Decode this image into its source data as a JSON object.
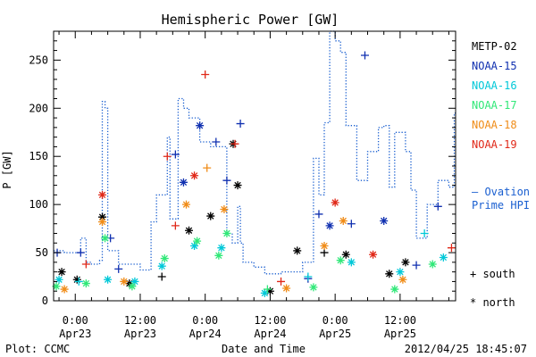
{
  "chart_data": {
    "type": "scatter",
    "title": "Hemispheric Power [GW]",
    "xlabel": "Date and Time",
    "ylabel": "P [GW]",
    "xlim": [
      "2012-04-22T20:00",
      "2012-04-25T22:15"
    ],
    "ylim": [
      0,
      280
    ],
    "yticks": [
      0,
      50,
      100,
      150,
      200,
      250
    ],
    "xticks": [
      {
        "at": "2012-04-23T00:00",
        "time": "0:00",
        "date": "Apr23"
      },
      {
        "at": "2012-04-23T12:00",
        "time": "12:00",
        "date": "Apr23"
      },
      {
        "at": "2012-04-24T00:00",
        "time": "0:00",
        "date": "Apr24"
      },
      {
        "at": "2012-04-24T12:00",
        "time": "12:00",
        "date": "Apr24"
      },
      {
        "at": "2012-04-25T00:00",
        "time": "0:00",
        "date": "Apr25"
      },
      {
        "at": "2012-04-25T12:00",
        "time": "12:00",
        "date": "Apr25"
      }
    ],
    "grid": false,
    "legend_position": "right",
    "marker_legend": {
      "south": "+ south",
      "north": "* north"
    },
    "series": [
      {
        "name": "METP-02",
        "color": "#000000",
        "points": [
          {
            "t": "2012-04-22T21:30",
            "p": 30,
            "m": "*"
          },
          {
            "t": "2012-04-23T00:20",
            "p": 22,
            "m": "*"
          },
          {
            "t": "2012-04-23T05:00",
            "p": 87,
            "m": "*"
          },
          {
            "t": "2012-04-23T10:00",
            "p": 18,
            "m": "*"
          },
          {
            "t": "2012-04-23T16:00",
            "p": 25,
            "m": "+"
          },
          {
            "t": "2012-04-23T21:00",
            "p": 73,
            "m": "*"
          },
          {
            "t": "2012-04-24T01:00",
            "p": 88,
            "m": "*"
          },
          {
            "t": "2012-04-24T05:10",
            "p": 163,
            "m": "*"
          },
          {
            "t": "2012-04-24T06:00",
            "p": 120,
            "m": "*"
          },
          {
            "t": "2012-04-24T12:00",
            "p": 10,
            "m": "*"
          },
          {
            "t": "2012-04-24T17:00",
            "p": 52,
            "m": "*"
          },
          {
            "t": "2012-04-24T22:00",
            "p": 50,
            "m": "+"
          },
          {
            "t": "2012-04-25T02:00",
            "p": 48,
            "m": "*"
          },
          {
            "t": "2012-04-25T10:00",
            "p": 28,
            "m": "*"
          },
          {
            "t": "2012-04-25T13:00",
            "p": 40,
            "m": "*"
          }
        ]
      },
      {
        "name": "NOAA-15",
        "color": "#1030b0",
        "points": [
          {
            "t": "2012-04-22T20:40",
            "p": 50,
            "m": "+"
          },
          {
            "t": "2012-04-23T01:00",
            "p": 50,
            "m": "+"
          },
          {
            "t": "2012-04-23T06:30",
            "p": 65,
            "m": "+"
          },
          {
            "t": "2012-04-23T08:00",
            "p": 33,
            "m": "+"
          },
          {
            "t": "2012-04-23T18:30",
            "p": 152,
            "m": "+"
          },
          {
            "t": "2012-04-23T20:00",
            "p": 123,
            "m": "*"
          },
          {
            "t": "2012-04-23T23:00",
            "p": 182,
            "m": "*"
          },
          {
            "t": "2012-04-24T02:00",
            "p": 165,
            "m": "+"
          },
          {
            "t": "2012-04-24T04:00",
            "p": 125,
            "m": "+"
          },
          {
            "t": "2012-04-24T06:30",
            "p": 184,
            "m": "+"
          },
          {
            "t": "2012-04-24T19:00",
            "p": 23,
            "m": "+"
          },
          {
            "t": "2012-04-24T21:00",
            "p": 90,
            "m": "+"
          },
          {
            "t": "2012-04-24T23:00",
            "p": 78,
            "m": "*"
          },
          {
            "t": "2012-04-25T03:00",
            "p": 80,
            "m": "+"
          },
          {
            "t": "2012-04-25T05:30",
            "p": 255,
            "m": "+"
          },
          {
            "t": "2012-04-25T09:00",
            "p": 83,
            "m": "*"
          },
          {
            "t": "2012-04-25T15:00",
            "p": 37,
            "m": "+"
          },
          {
            "t": "2012-04-25T19:00",
            "p": 98,
            "m": "+"
          }
        ]
      },
      {
        "name": "NOAA-16",
        "color": "#00c8d8",
        "points": [
          {
            "t": "2012-04-22T21:00",
            "p": 22,
            "m": "*"
          },
          {
            "t": "2012-04-23T00:40",
            "p": 20,
            "m": "+"
          },
          {
            "t": "2012-04-23T06:00",
            "p": 22,
            "m": "*"
          },
          {
            "t": "2012-04-23T11:00",
            "p": 20,
            "m": "*"
          },
          {
            "t": "2012-04-23T16:00",
            "p": 36,
            "m": "*"
          },
          {
            "t": "2012-04-23T22:00",
            "p": 57,
            "m": "*"
          },
          {
            "t": "2012-04-24T03:00",
            "p": 55,
            "m": "*"
          },
          {
            "t": "2012-04-24T11:00",
            "p": 8,
            "m": "*"
          },
          {
            "t": "2012-04-24T19:00",
            "p": 25,
            "m": "+"
          },
          {
            "t": "2012-04-25T03:00",
            "p": 40,
            "m": "*"
          },
          {
            "t": "2012-04-25T12:00",
            "p": 30,
            "m": "*"
          },
          {
            "t": "2012-04-25T16:30",
            "p": 70,
            "m": "+"
          },
          {
            "t": "2012-04-25T20:00",
            "p": 45,
            "m": "*"
          }
        ]
      },
      {
        "name": "NOAA-17",
        "color": "#30e878",
        "points": [
          {
            "t": "2012-04-22T20:30",
            "p": 15,
            "m": "*"
          },
          {
            "t": "2012-04-23T02:00",
            "p": 18,
            "m": "*"
          },
          {
            "t": "2012-04-23T05:30",
            "p": 65,
            "m": "*"
          },
          {
            "t": "2012-04-23T10:30",
            "p": 15,
            "m": "*"
          },
          {
            "t": "2012-04-23T16:30",
            "p": 44,
            "m": "*"
          },
          {
            "t": "2012-04-23T22:30",
            "p": 62,
            "m": "*"
          },
          {
            "t": "2012-04-24T02:30",
            "p": 47,
            "m": "*"
          },
          {
            "t": "2012-04-24T04:00",
            "p": 70,
            "m": "*"
          },
          {
            "t": "2012-04-24T11:30",
            "p": 12,
            "m": "+"
          },
          {
            "t": "2012-04-24T20:00",
            "p": 14,
            "m": "*"
          },
          {
            "t": "2012-04-25T01:00",
            "p": 42,
            "m": "*"
          },
          {
            "t": "2012-04-25T11:00",
            "p": 12,
            "m": "*"
          },
          {
            "t": "2012-04-25T18:00",
            "p": 38,
            "m": "*"
          }
        ]
      },
      {
        "name": "NOAA-18",
        "color": "#f08c18",
        "points": [
          {
            "t": "2012-04-22T22:00",
            "p": 12,
            "m": "*"
          },
          {
            "t": "2012-04-23T05:00",
            "p": 82,
            "m": "*"
          },
          {
            "t": "2012-04-23T09:00",
            "p": 20,
            "m": "*"
          },
          {
            "t": "2012-04-23T20:30",
            "p": 100,
            "m": "*"
          },
          {
            "t": "2012-04-24T00:20",
            "p": 138,
            "m": "+"
          },
          {
            "t": "2012-04-24T03:30",
            "p": 95,
            "m": "*"
          },
          {
            "t": "2012-04-24T15:00",
            "p": 13,
            "m": "*"
          },
          {
            "t": "2012-04-24T22:00",
            "p": 57,
            "m": "*"
          },
          {
            "t": "2012-04-25T01:30",
            "p": 83,
            "m": "*"
          },
          {
            "t": "2012-04-25T12:30",
            "p": 22,
            "m": "*"
          }
        ]
      },
      {
        "name": "NOAA-19",
        "color": "#e02818",
        "points": [
          {
            "t": "2012-04-23T02:00",
            "p": 38,
            "m": "+"
          },
          {
            "t": "2012-04-23T05:00",
            "p": 110,
            "m": "*"
          },
          {
            "t": "2012-04-23T17:00",
            "p": 150,
            "m": "+"
          },
          {
            "t": "2012-04-23T18:30",
            "p": 78,
            "m": "+"
          },
          {
            "t": "2012-04-23T22:00",
            "p": 130,
            "m": "*"
          },
          {
            "t": "2012-04-24T00:00",
            "p": 235,
            "m": "+"
          },
          {
            "t": "2012-04-24T05:30",
            "p": 163,
            "m": "+"
          },
          {
            "t": "2012-04-24T14:00",
            "p": 20,
            "m": "+"
          },
          {
            "t": "2012-04-25T00:00",
            "p": 102,
            "m": "*"
          },
          {
            "t": "2012-04-25T07:00",
            "p": 48,
            "m": "*"
          },
          {
            "t": "2012-04-25T21:30",
            "p": 55,
            "m": "+"
          }
        ]
      }
    ],
    "reference_line": {
      "name": "Ovation Prime HPI",
      "label_line1": "— Ovation",
      "label_line2": "Prime HPI",
      "color": "#1a5fd0",
      "points": [
        [
          "2012-04-22T20:00",
          52
        ],
        [
          "2012-04-22T22:00",
          50
        ],
        [
          "2012-04-23T01:00",
          65
        ],
        [
          "2012-04-23T02:00",
          40
        ],
        [
          "2012-04-23T03:00",
          38
        ],
        [
          "2012-04-23T04:30",
          42
        ],
        [
          "2012-04-23T05:00",
          207
        ],
        [
          "2012-04-23T05:30",
          200
        ],
        [
          "2012-04-23T06:00",
          52
        ],
        [
          "2012-04-23T08:00",
          38
        ],
        [
          "2012-04-23T12:00",
          32
        ],
        [
          "2012-04-23T14:00",
          82
        ],
        [
          "2012-04-23T15:00",
          110
        ],
        [
          "2012-04-23T17:00",
          170
        ],
        [
          "2012-04-23T17:30",
          85
        ],
        [
          "2012-04-23T19:00",
          210
        ],
        [
          "2012-04-23T20:00",
          200
        ],
        [
          "2012-04-23T21:00",
          190
        ],
        [
          "2012-04-23T23:00",
          165
        ],
        [
          "2012-04-24T01:00",
          160
        ],
        [
          "2012-04-24T04:00",
          70
        ],
        [
          "2012-04-24T05:00",
          60
        ],
        [
          "2012-04-24T06:00",
          98
        ],
        [
          "2012-04-24T06:30",
          60
        ],
        [
          "2012-04-24T07:00",
          40
        ],
        [
          "2012-04-24T09:00",
          35
        ],
        [
          "2012-04-24T11:00",
          28
        ],
        [
          "2012-04-24T14:00",
          30
        ],
        [
          "2012-04-24T18:00",
          40
        ],
        [
          "2012-04-24T20:00",
          148
        ],
        [
          "2012-04-24T21:00",
          110
        ],
        [
          "2012-04-24T22:00",
          185
        ],
        [
          "2012-04-24T23:00",
          280
        ],
        [
          "2012-04-25T00:00",
          270
        ],
        [
          "2012-04-25T01:00",
          258
        ],
        [
          "2012-04-25T02:00",
          182
        ],
        [
          "2012-04-25T04:00",
          125
        ],
        [
          "2012-04-25T06:00",
          155
        ],
        [
          "2012-04-25T08:00",
          180
        ],
        [
          "2012-04-25T09:00",
          182
        ],
        [
          "2012-04-25T10:00",
          118
        ],
        [
          "2012-04-25T11:00",
          175
        ],
        [
          "2012-04-25T13:00",
          155
        ],
        [
          "2012-04-25T14:00",
          115
        ],
        [
          "2012-04-25T15:00",
          65
        ],
        [
          "2012-04-25T17:00",
          100
        ],
        [
          "2012-04-25T19:00",
          125
        ],
        [
          "2012-04-25T21:00",
          118
        ],
        [
          "2012-04-25T22:00",
          195
        ]
      ]
    }
  },
  "footer": {
    "plot_source": "Plot: CCMC",
    "timestamp": "2012/04/25 18:45:07"
  }
}
